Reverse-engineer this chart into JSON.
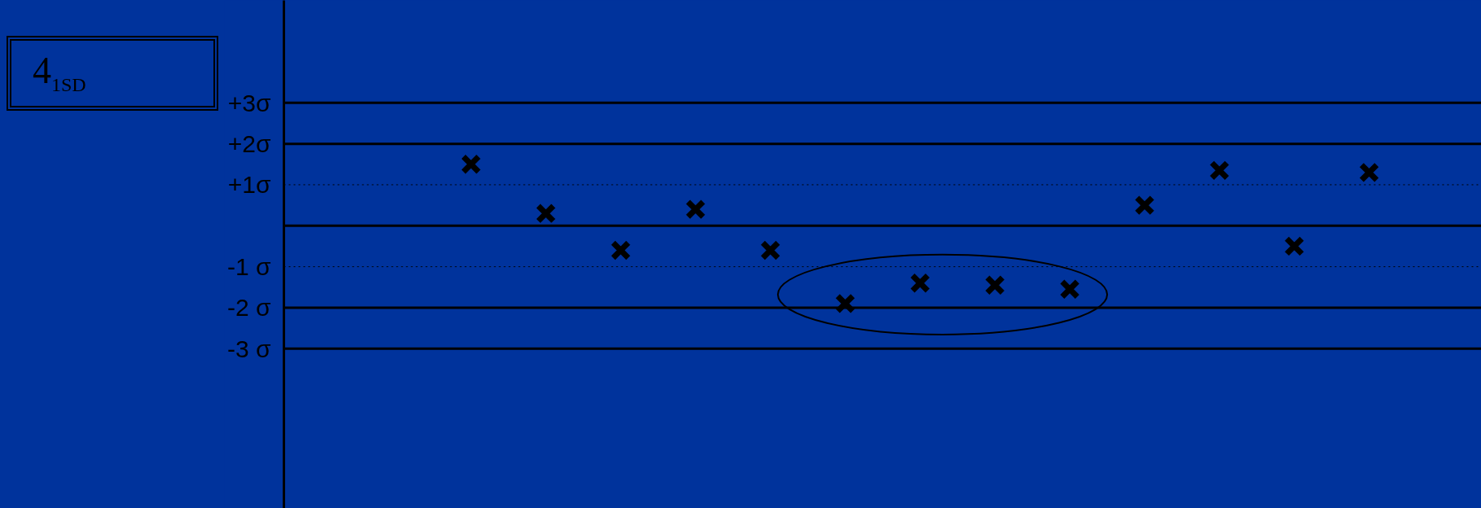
{
  "chart_data": {
    "type": "scatter",
    "title": "4$_{1SD}$",
    "categories": [
      null,
      null,
      null,
      null,
      null,
      null,
      null,
      null,
      null,
      null,
      null,
      null,
      null,
      null,
      null,
      null
    ],
    "series": [
      {
        "color": "#000000",
        "values": [
          null,
          null,
          1.5,
          0.3,
          -0.6,
          0.4,
          -0.6,
          -1.9,
          -1.4,
          -1.45,
          -1.55,
          0.5,
          1.35,
          -0.5,
          1.3,
          null
        ]
      }
    ],
    "marker": "cross",
    "ylim": [
      -6.9,
      5.5
    ],
    "yticks": [
      {
        "value": 3,
        "label": "+3σ"
      },
      {
        "value": 2,
        "label": "+2σ"
      },
      {
        "value": 1,
        "label": "+1σ"
      },
      {
        "value": 0,
        "label": null
      },
      {
        "value": -1,
        "label": "-1 σ"
      },
      {
        "value": -2,
        "label": "-2 σ"
      },
      {
        "value": -3,
        "label": "-3 σ"
      }
    ],
    "tick_labels": "y",
    "ref_lines": [
      {
        "axis": "y",
        "value": 3,
        "color": "#000000",
        "line_style": "solid"
      },
      {
        "axis": "y",
        "value": 2,
        "color": "#000000",
        "line_style": "solid"
      },
      {
        "axis": "y",
        "value": 1,
        "color": "#000000",
        "line_style": "dotted"
      },
      {
        "axis": "y",
        "value": 0,
        "color": "#000000",
        "line_style": "solid"
      },
      {
        "axis": "y",
        "value": -1,
        "color": "#000000",
        "line_style": "dotted"
      },
      {
        "axis": "y",
        "value": -2,
        "color": "#000000",
        "line_style": "solid"
      },
      {
        "axis": "y",
        "value": -3,
        "color": "#000000",
        "line_style": "solid"
      }
    ]
  }
}
